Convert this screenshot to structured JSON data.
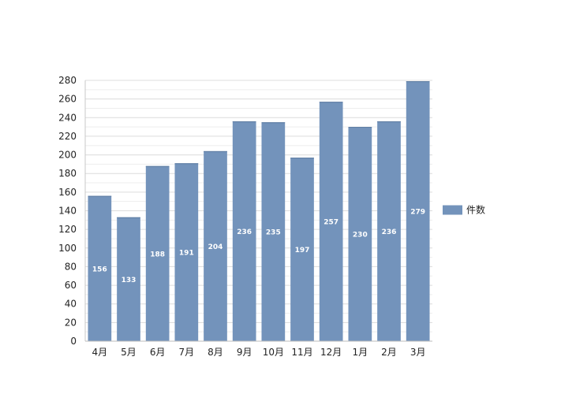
{
  "chart_data": {
    "type": "bar",
    "categories": [
      "4月",
      "5月",
      "6月",
      "7月",
      "8月",
      "9月",
      "10月",
      "11月",
      "12月",
      "1月",
      "2月",
      "3月"
    ],
    "series": [
      {
        "name": "件数",
        "values": [
          156,
          133,
          188,
          191,
          204,
          236,
          235,
          197,
          257,
          230,
          236,
          279
        ],
        "color": "#7393bb"
      }
    ],
    "ylim": [
      0,
      280
    ],
    "ytick_step": 20,
    "grid": true,
    "data_labels": true,
    "legend_placement": "right"
  }
}
